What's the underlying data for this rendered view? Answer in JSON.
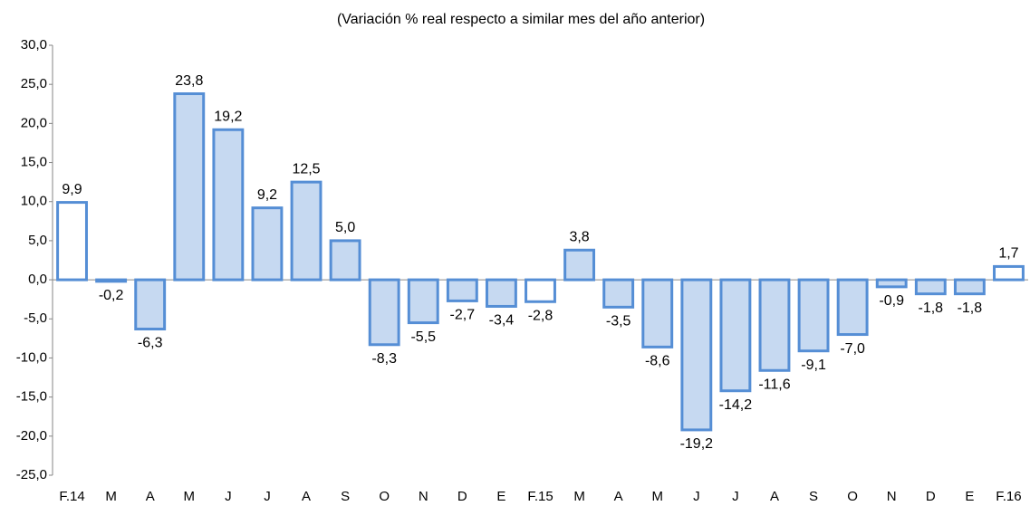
{
  "chart_data": {
    "type": "bar",
    "title": "(Variación % real respecto a similar mes del año anterior)",
    "categories": [
      "F.14",
      "M",
      "A",
      "M",
      "J",
      "J",
      "A",
      "S",
      "O",
      "N",
      "D",
      "E",
      "F.15",
      "M",
      "A",
      "M",
      "J",
      "J",
      "A",
      "S",
      "O",
      "N",
      "D",
      "E",
      "F.16"
    ],
    "values": [
      9.9,
      -0.2,
      -6.3,
      23.8,
      19.2,
      9.2,
      12.5,
      5.0,
      -8.3,
      -5.5,
      -2.7,
      -3.4,
      -2.8,
      3.8,
      -3.5,
      -8.6,
      -19.2,
      -14.2,
      -11.6,
      -9.1,
      -7.0,
      -0.9,
      -1.8,
      -1.8,
      1.7
    ],
    "value_labels": [
      "9,9",
      "-0,2",
      "-6,3",
      "23,8",
      "19,2",
      "9,2",
      "12,5",
      "5,0",
      "-8,3",
      "-5,5",
      "-2,7",
      "-3,4",
      "-2,8",
      "3,8",
      "-3,5",
      "-8,6",
      "-19,2",
      "-14,2",
      "-11,6",
      "-9,1",
      "-7,0",
      "-0,9",
      "-1,8",
      "-1,8",
      "1,7"
    ],
    "colors": [
      "#ffffff",
      "#c6d9f1",
      "#c6d9f1",
      "#c6d9f1",
      "#c6d9f1",
      "#c6d9f1",
      "#c6d9f1",
      "#c6d9f1",
      "#c6d9f1",
      "#c6d9f1",
      "#c6d9f1",
      "#c6d9f1",
      "#ffffff",
      "#c6d9f1",
      "#c6d9f1",
      "#c6d9f1",
      "#c6d9f1",
      "#c6d9f1",
      "#c6d9f1",
      "#c6d9f1",
      "#c6d9f1",
      "#c6d9f1",
      "#c6d9f1",
      "#c6d9f1",
      "#ffffff"
    ],
    "edge_color": "#558ed5",
    "ylim": [
      -25,
      30
    ],
    "yticks": [
      {
        "value": -25,
        "label": "-25,0"
      },
      {
        "value": -20,
        "label": "-20,0"
      },
      {
        "value": -15,
        "label": "-15,0"
      },
      {
        "value": -10,
        "label": "-10,0"
      },
      {
        "value": -5,
        "label": "-5,0"
      },
      {
        "value": 0,
        "label": "0,0"
      },
      {
        "value": 5,
        "label": "5,0"
      },
      {
        "value": 10,
        "label": "10,0"
      },
      {
        "value": 15,
        "label": "15,0"
      },
      {
        "value": 20,
        "label": "20,0"
      },
      {
        "value": 25,
        "label": "25,0"
      },
      {
        "value": 30,
        "label": "30,0"
      }
    ],
    "grid": false
  }
}
